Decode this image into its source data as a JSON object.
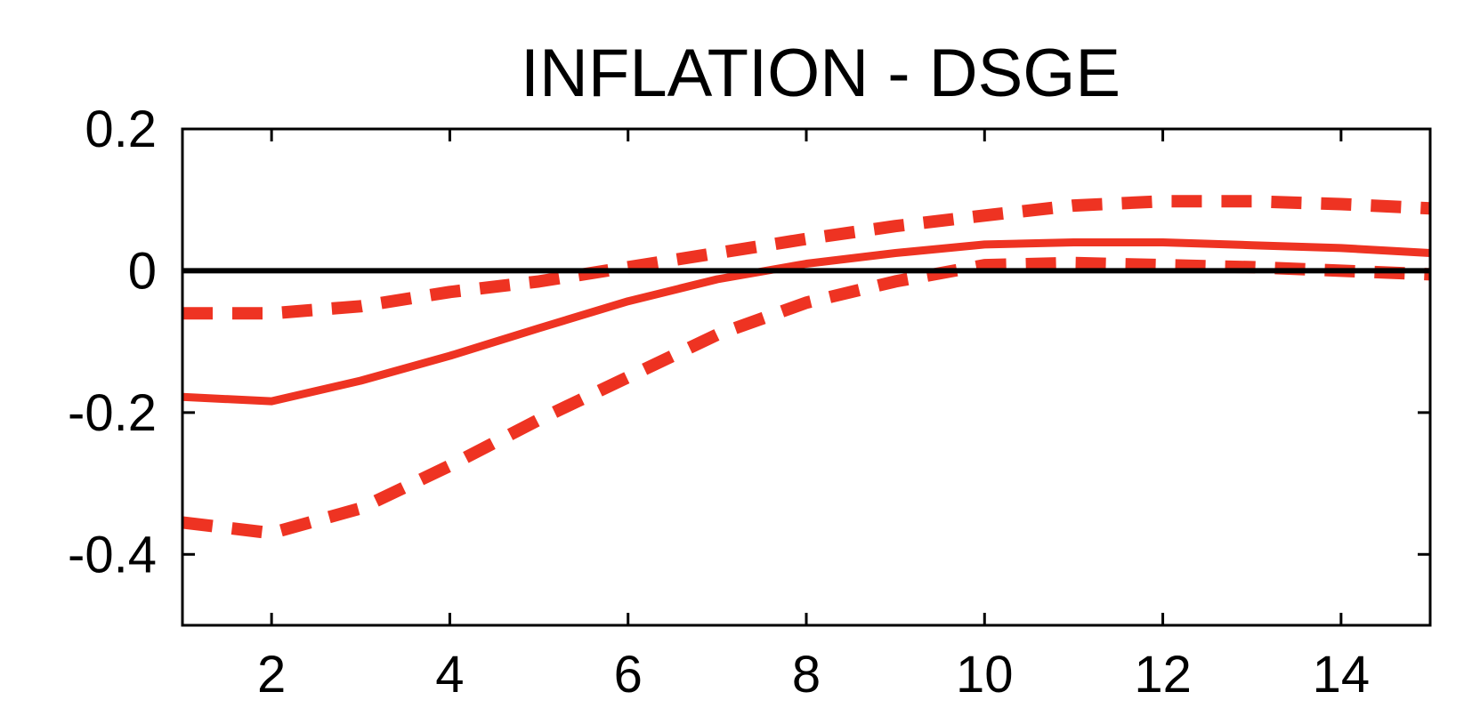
{
  "chart_data": {
    "type": "line",
    "title": "INFLATION - DSGE",
    "xlabel": "",
    "ylabel": "",
    "xlim": [
      1,
      15
    ],
    "ylim": [
      -0.5,
      0.2
    ],
    "xticks": [
      2,
      4,
      6,
      8,
      10,
      12,
      14
    ],
    "xtick_labels": [
      "2",
      "4",
      "6",
      "8",
      "10",
      "12",
      "14"
    ],
    "yticks": [
      0.2,
      0,
      -0.2,
      -0.4
    ],
    "ytick_labels": [
      "0.2",
      "0",
      "-0.2",
      "-0.4"
    ],
    "grid": false,
    "legend": "none",
    "zero_line": 0,
    "x": [
      1,
      2,
      3,
      4,
      5,
      6,
      7,
      8,
      9,
      10,
      11,
      12,
      13,
      14,
      15
    ],
    "series": [
      {
        "style": "solid",
        "color": "#ee3322",
        "values": [
          -0.178,
          -0.184,
          -0.155,
          -0.12,
          -0.081,
          -0.043,
          -0.012,
          0.01,
          0.025,
          0.037,
          0.04,
          0.04,
          0.036,
          0.032,
          0.025
        ]
      },
      {
        "style": "dashed",
        "color": "#ee3322",
        "values": [
          -0.06,
          -0.06,
          -0.05,
          -0.03,
          -0.015,
          0.005,
          0.025,
          0.045,
          0.063,
          0.078,
          0.092,
          0.098,
          0.098,
          0.094,
          0.088
        ]
      },
      {
        "style": "dashed",
        "color": "#ee3322",
        "values": [
          -0.355,
          -0.37,
          -0.335,
          -0.275,
          -0.21,
          -0.15,
          -0.09,
          -0.045,
          -0.015,
          0.008,
          0.011,
          0.008,
          0.005,
          0.0,
          -0.005
        ]
      }
    ]
  }
}
